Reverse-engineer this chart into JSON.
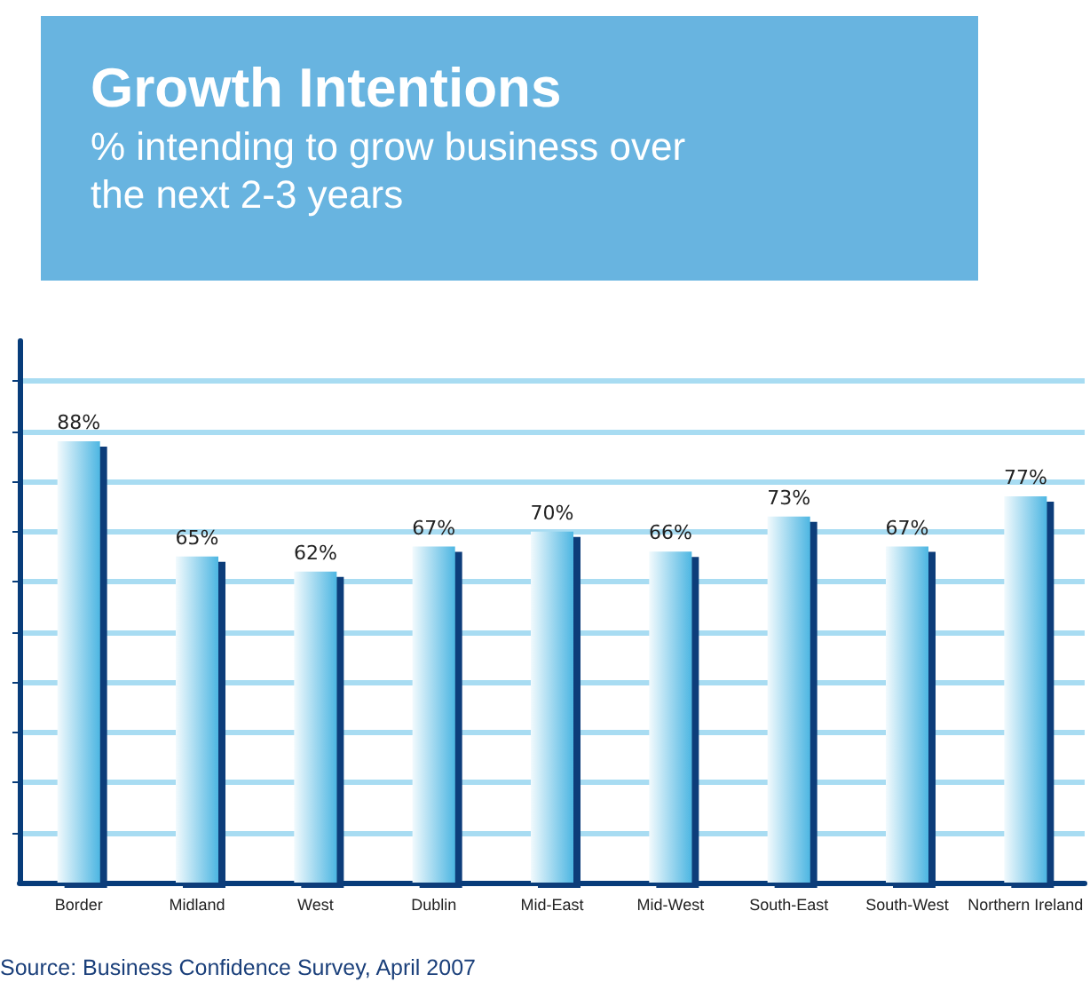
{
  "chart_data": {
    "type": "bar",
    "title": "Growth Intentions",
    "subtitle": "% intending to grow business over the next 2-3 years",
    "categories": [
      "Border",
      "Midland",
      "West",
      "Dublin",
      "Mid-East",
      "Mid-West",
      "South-East",
      "South-West",
      "Northern Ireland"
    ],
    "values": [
      88,
      65,
      62,
      67,
      70,
      66,
      73,
      67,
      77
    ],
    "value_labels": [
      "88%",
      "65%",
      "62%",
      "67%",
      "70%",
      "66%",
      "73%",
      "67%",
      "77%"
    ],
    "color": "#4db6e2",
    "ylim": [
      0,
      108
    ],
    "yticks": [
      {
        "value": 10,
        "label": null
      },
      {
        "value": 20,
        "label": null
      },
      {
        "value": 30,
        "label": null
      },
      {
        "value": 40,
        "label": null
      },
      {
        "value": 50,
        "label": null
      },
      {
        "value": 60,
        "label": null
      },
      {
        "value": 70,
        "label": null
      },
      {
        "value": 80,
        "label": null
      },
      {
        "value": 90,
        "label": null
      },
      {
        "value": 100,
        "label": null
      }
    ],
    "grid": "y",
    "annotations": [
      "Source: Business Confidence Survey, April 2007"
    ]
  }
}
